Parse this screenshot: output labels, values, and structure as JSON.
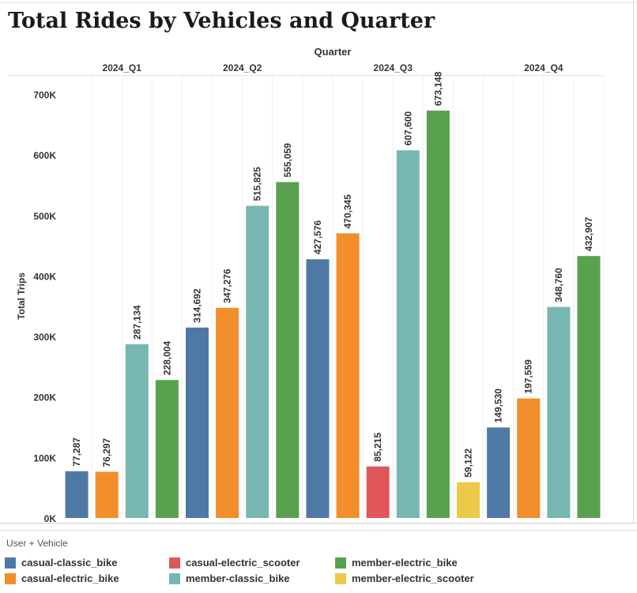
{
  "chart_data": {
    "type": "bar",
    "title": "Total Rides by Vehicles and Quarter",
    "column_header": "Quarter",
    "ylabel": "Total Trips",
    "ylim": [
      0,
      760000
    ],
    "yticks": [
      0,
      100000,
      200000,
      300000,
      400000,
      500000,
      600000,
      700000
    ],
    "ytick_labels": [
      "0K",
      "100K",
      "200K",
      "300K",
      "400K",
      "500K",
      "600K",
      "700K"
    ],
    "grid": false,
    "legend_title": "User + Vehicle",
    "series_colors": {
      "casual-classic_bike": "#4e79a7",
      "casual-electric_bike": "#f28e2b",
      "casual-electric_scooter": "#e15759",
      "member-classic_bike": "#76b7b2",
      "member-electric_bike": "#59a14f",
      "member-electric_scooter": "#edc948"
    },
    "quarters": [
      {
        "name": "2024_Q1",
        "bars": [
          {
            "series": "casual-classic_bike",
            "value": 77287,
            "label": "77,287"
          },
          {
            "series": "casual-electric_bike",
            "value": 76297,
            "label": "76,297"
          },
          {
            "series": "member-classic_bike",
            "value": 287134,
            "label": "287,134"
          },
          {
            "series": "member-electric_bike",
            "value": 228004,
            "label": "228,004"
          }
        ]
      },
      {
        "name": "2024_Q2",
        "bars": [
          {
            "series": "casual-classic_bike",
            "value": 314692,
            "label": "314,692"
          },
          {
            "series": "casual-electric_bike",
            "value": 347276,
            "label": "347,276"
          },
          {
            "series": "member-classic_bike",
            "value": 515825,
            "label": "515,825"
          },
          {
            "series": "member-electric_bike",
            "value": 555059,
            "label": "555,059"
          }
        ]
      },
      {
        "name": "2024_Q3",
        "bars": [
          {
            "series": "casual-classic_bike",
            "value": 427576,
            "label": "427,576"
          },
          {
            "series": "casual-electric_bike",
            "value": 470345,
            "label": "470,345"
          },
          {
            "series": "casual-electric_scooter",
            "value": 85215,
            "label": "85,215"
          },
          {
            "series": "member-classic_bike",
            "value": 607600,
            "label": "607,600"
          },
          {
            "series": "member-electric_bike",
            "value": 673148,
            "label": "673,148"
          },
          {
            "series": "member-electric_scooter",
            "value": 59122,
            "label": "59,122"
          }
        ]
      },
      {
        "name": "2024_Q4",
        "bars": [
          {
            "series": "casual-classic_bike",
            "value": 149530,
            "label": "149,530"
          },
          {
            "series": "casual-electric_bike",
            "value": 197559,
            "label": "197,559"
          },
          {
            "series": "member-classic_bike",
            "value": 348760,
            "label": "348,760"
          },
          {
            "series": "member-electric_bike",
            "value": 432907,
            "label": "432,907"
          }
        ]
      }
    ]
  },
  "legend": {
    "title": "User + Vehicle",
    "items": [
      {
        "label": "casual-classic_bike",
        "color": "#4e79a7"
      },
      {
        "label": "casual-electric_scooter",
        "color": "#e15759"
      },
      {
        "label": "member-electric_bike",
        "color": "#59a14f"
      },
      {
        "label": "casual-electric_bike",
        "color": "#f28e2b"
      },
      {
        "label": "member-classic_bike",
        "color": "#76b7b2"
      },
      {
        "label": "member-electric_scooter",
        "color": "#edc948"
      }
    ]
  }
}
